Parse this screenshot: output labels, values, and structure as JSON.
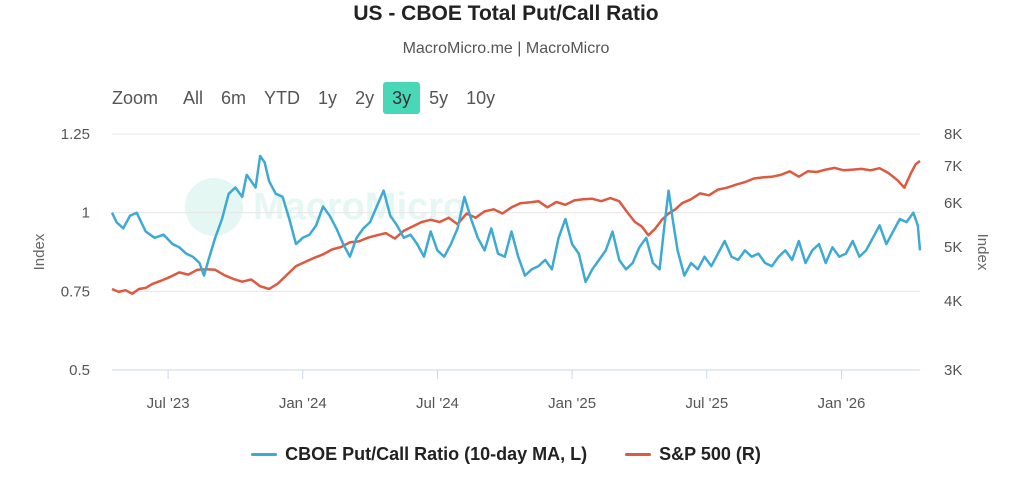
{
  "header": {
    "title": "US - CBOE Total Put/Call Ratio",
    "subtitle": "MacroMicro.me | MacroMicro"
  },
  "range_selector": {
    "zoom_label": "Zoom",
    "buttons": [
      "All",
      "6m",
      "YTD",
      "1y",
      "2y",
      "3y",
      "5y",
      "10y"
    ],
    "active": "3y"
  },
  "watermark": "MacroMicro",
  "colors": {
    "put_call": "#3eaad4",
    "sp500": "#dc5a40",
    "active_button": "#48d8b8",
    "grid": "#e6e6e6"
  },
  "chart_data": {
    "type": "line",
    "title": "US - CBOE Total Put/Call Ratio",
    "x_ticks": [
      "Jul '23",
      "Jan '24",
      "Jul '24",
      "Jan '25",
      "Jul '25",
      "Jan '26"
    ],
    "x_tick_index": [
      0.5,
      6.5,
      12.5,
      18.5,
      24.5,
      30.5
    ],
    "x_range": [
      -2.0,
      34.0
    ],
    "y_left": {
      "label": "Index",
      "ticks": [
        "0.5",
        "0.75",
        "1",
        "1.25"
      ],
      "min": 0.5,
      "max": 1.25
    },
    "y_right": {
      "label": "Index",
      "ticks": [
        "3K",
        "4K",
        "5K",
        "6K",
        "7K",
        "8K"
      ],
      "min": 3000,
      "max": 8000,
      "scale": "log"
    },
    "series": [
      {
        "name": "CBOE Put/Call Ratio (10-day MA, L)",
        "axis": "left",
        "x": [
          -2.0,
          -1.8,
          -1.5,
          -1.2,
          -0.9,
          -0.5,
          -0.1,
          0.3,
          0.7,
          1.0,
          1.3,
          1.6,
          1.9,
          2.1,
          2.3,
          2.6,
          2.9,
          3.2,
          3.5,
          3.8,
          4.0,
          4.2,
          4.4,
          4.6,
          4.8,
          5.0,
          5.3,
          5.6,
          5.9,
          6.2,
          6.5,
          6.8,
          7.1,
          7.4,
          7.7,
          8.0,
          8.3,
          8.6,
          8.9,
          9.2,
          9.5,
          9.8,
          10.1,
          10.4,
          10.7,
          11.0,
          11.3,
          11.6,
          11.9,
          12.2,
          12.5,
          12.8,
          13.1,
          13.4,
          13.7,
          14.0,
          14.3,
          14.6,
          14.9,
          15.2,
          15.5,
          15.8,
          16.1,
          16.4,
          16.7,
          17.0,
          17.3,
          17.6,
          17.9,
          18.2,
          18.5,
          18.8,
          19.1,
          19.4,
          19.7,
          20.0,
          20.3,
          20.6,
          20.9,
          21.2,
          21.5,
          21.8,
          22.1,
          22.4,
          22.6,
          22.8,
          23.0,
          23.2,
          23.5,
          23.8,
          24.1,
          24.4,
          24.7,
          25.0,
          25.3,
          25.6,
          25.9,
          26.2,
          26.5,
          26.8,
          27.1,
          27.4,
          27.7,
          28.0,
          28.3,
          28.6,
          28.9,
          29.2,
          29.5,
          29.8,
          30.1,
          30.4,
          30.7,
          31.0,
          31.3,
          31.6,
          31.9,
          32.2,
          32.5,
          32.8,
          33.1,
          33.4,
          33.7,
          33.9,
          34.0
        ],
        "values": [
          1.0,
          0.97,
          0.95,
          0.99,
          1.0,
          0.94,
          0.92,
          0.93,
          0.9,
          0.89,
          0.87,
          0.86,
          0.84,
          0.8,
          0.85,
          0.92,
          0.98,
          1.06,
          1.08,
          1.05,
          1.12,
          1.1,
          1.08,
          1.18,
          1.16,
          1.1,
          1.06,
          1.05,
          0.98,
          0.9,
          0.92,
          0.93,
          0.96,
          1.02,
          0.99,
          0.95,
          0.9,
          0.86,
          0.92,
          0.95,
          0.97,
          1.02,
          1.07,
          0.99,
          0.96,
          0.92,
          0.93,
          0.9,
          0.86,
          0.94,
          0.88,
          0.86,
          0.9,
          0.95,
          1.05,
          0.98,
          0.92,
          0.88,
          0.95,
          0.87,
          0.86,
          0.94,
          0.86,
          0.8,
          0.82,
          0.83,
          0.85,
          0.82,
          0.92,
          0.98,
          0.9,
          0.87,
          0.78,
          0.82,
          0.85,
          0.88,
          0.94,
          0.85,
          0.82,
          0.84,
          0.89,
          0.92,
          0.84,
          0.82,
          0.95,
          1.07,
          0.97,
          0.88,
          0.8,
          0.84,
          0.82,
          0.86,
          0.83,
          0.87,
          0.91,
          0.86,
          0.85,
          0.88,
          0.86,
          0.87,
          0.84,
          0.83,
          0.86,
          0.88,
          0.85,
          0.91,
          0.84,
          0.88,
          0.9,
          0.84,
          0.89,
          0.86,
          0.87,
          0.91,
          0.86,
          0.88,
          0.92,
          0.96,
          0.9,
          0.94,
          0.98,
          0.97,
          1.0,
          0.96,
          0.88
        ]
      },
      {
        "name": "S&P 500 (R)",
        "axis": "right",
        "x": [
          -2.0,
          -1.7,
          -1.4,
          -1.1,
          -0.8,
          -0.5,
          -0.2,
          0.2,
          0.6,
          1.0,
          1.4,
          1.8,
          2.2,
          2.6,
          3.0,
          3.4,
          3.8,
          4.2,
          4.6,
          5.0,
          5.4,
          5.8,
          6.2,
          6.6,
          7.0,
          7.4,
          7.8,
          8.2,
          8.6,
          9.0,
          9.4,
          9.8,
          10.2,
          10.6,
          11.0,
          11.4,
          11.8,
          12.2,
          12.6,
          13.0,
          13.4,
          13.8,
          14.2,
          14.6,
          15.0,
          15.4,
          15.8,
          16.2,
          16.6,
          17.0,
          17.4,
          17.8,
          18.2,
          18.6,
          19.0,
          19.4,
          19.8,
          20.2,
          20.6,
          21.0,
          21.3,
          21.6,
          21.9,
          22.2,
          22.5,
          22.8,
          23.1,
          23.4,
          23.8,
          24.2,
          24.6,
          25.0,
          25.4,
          25.8,
          26.2,
          26.6,
          27.0,
          27.4,
          27.8,
          28.2,
          28.6,
          29.0,
          29.4,
          29.8,
          30.2,
          30.6,
          31.0,
          31.4,
          31.8,
          32.2,
          32.6,
          33.0,
          33.3,
          33.6,
          33.8,
          34.0
        ],
        "values": [
          4200,
          4150,
          4180,
          4120,
          4200,
          4220,
          4290,
          4350,
          4420,
          4500,
          4460,
          4550,
          4560,
          4550,
          4450,
          4380,
          4330,
          4370,
          4250,
          4200,
          4300,
          4460,
          4620,
          4700,
          4780,
          4850,
          4950,
          5000,
          5100,
          5120,
          5200,
          5250,
          5300,
          5180,
          5350,
          5450,
          5550,
          5600,
          5550,
          5650,
          5500,
          5750,
          5650,
          5800,
          5850,
          5750,
          5900,
          6000,
          6020,
          6050,
          5900,
          6030,
          5960,
          6070,
          6100,
          6110,
          6050,
          6130,
          6050,
          5750,
          5550,
          5450,
          5250,
          5400,
          5600,
          5750,
          5850,
          6000,
          6100,
          6250,
          6200,
          6350,
          6400,
          6480,
          6550,
          6650,
          6680,
          6700,
          6750,
          6850,
          6700,
          6850,
          6830,
          6900,
          6950,
          6880,
          6900,
          6920,
          6880,
          6940,
          6800,
          6600,
          6400,
          6800,
          7050,
          7150
        ]
      }
    ]
  },
  "legend": {
    "items": [
      {
        "label": "CBOE Put/Call Ratio (10-day MA, L)",
        "color": "#3eaad4"
      },
      {
        "label": "S&P 500 (R)",
        "color": "#dc5a40"
      }
    ]
  }
}
